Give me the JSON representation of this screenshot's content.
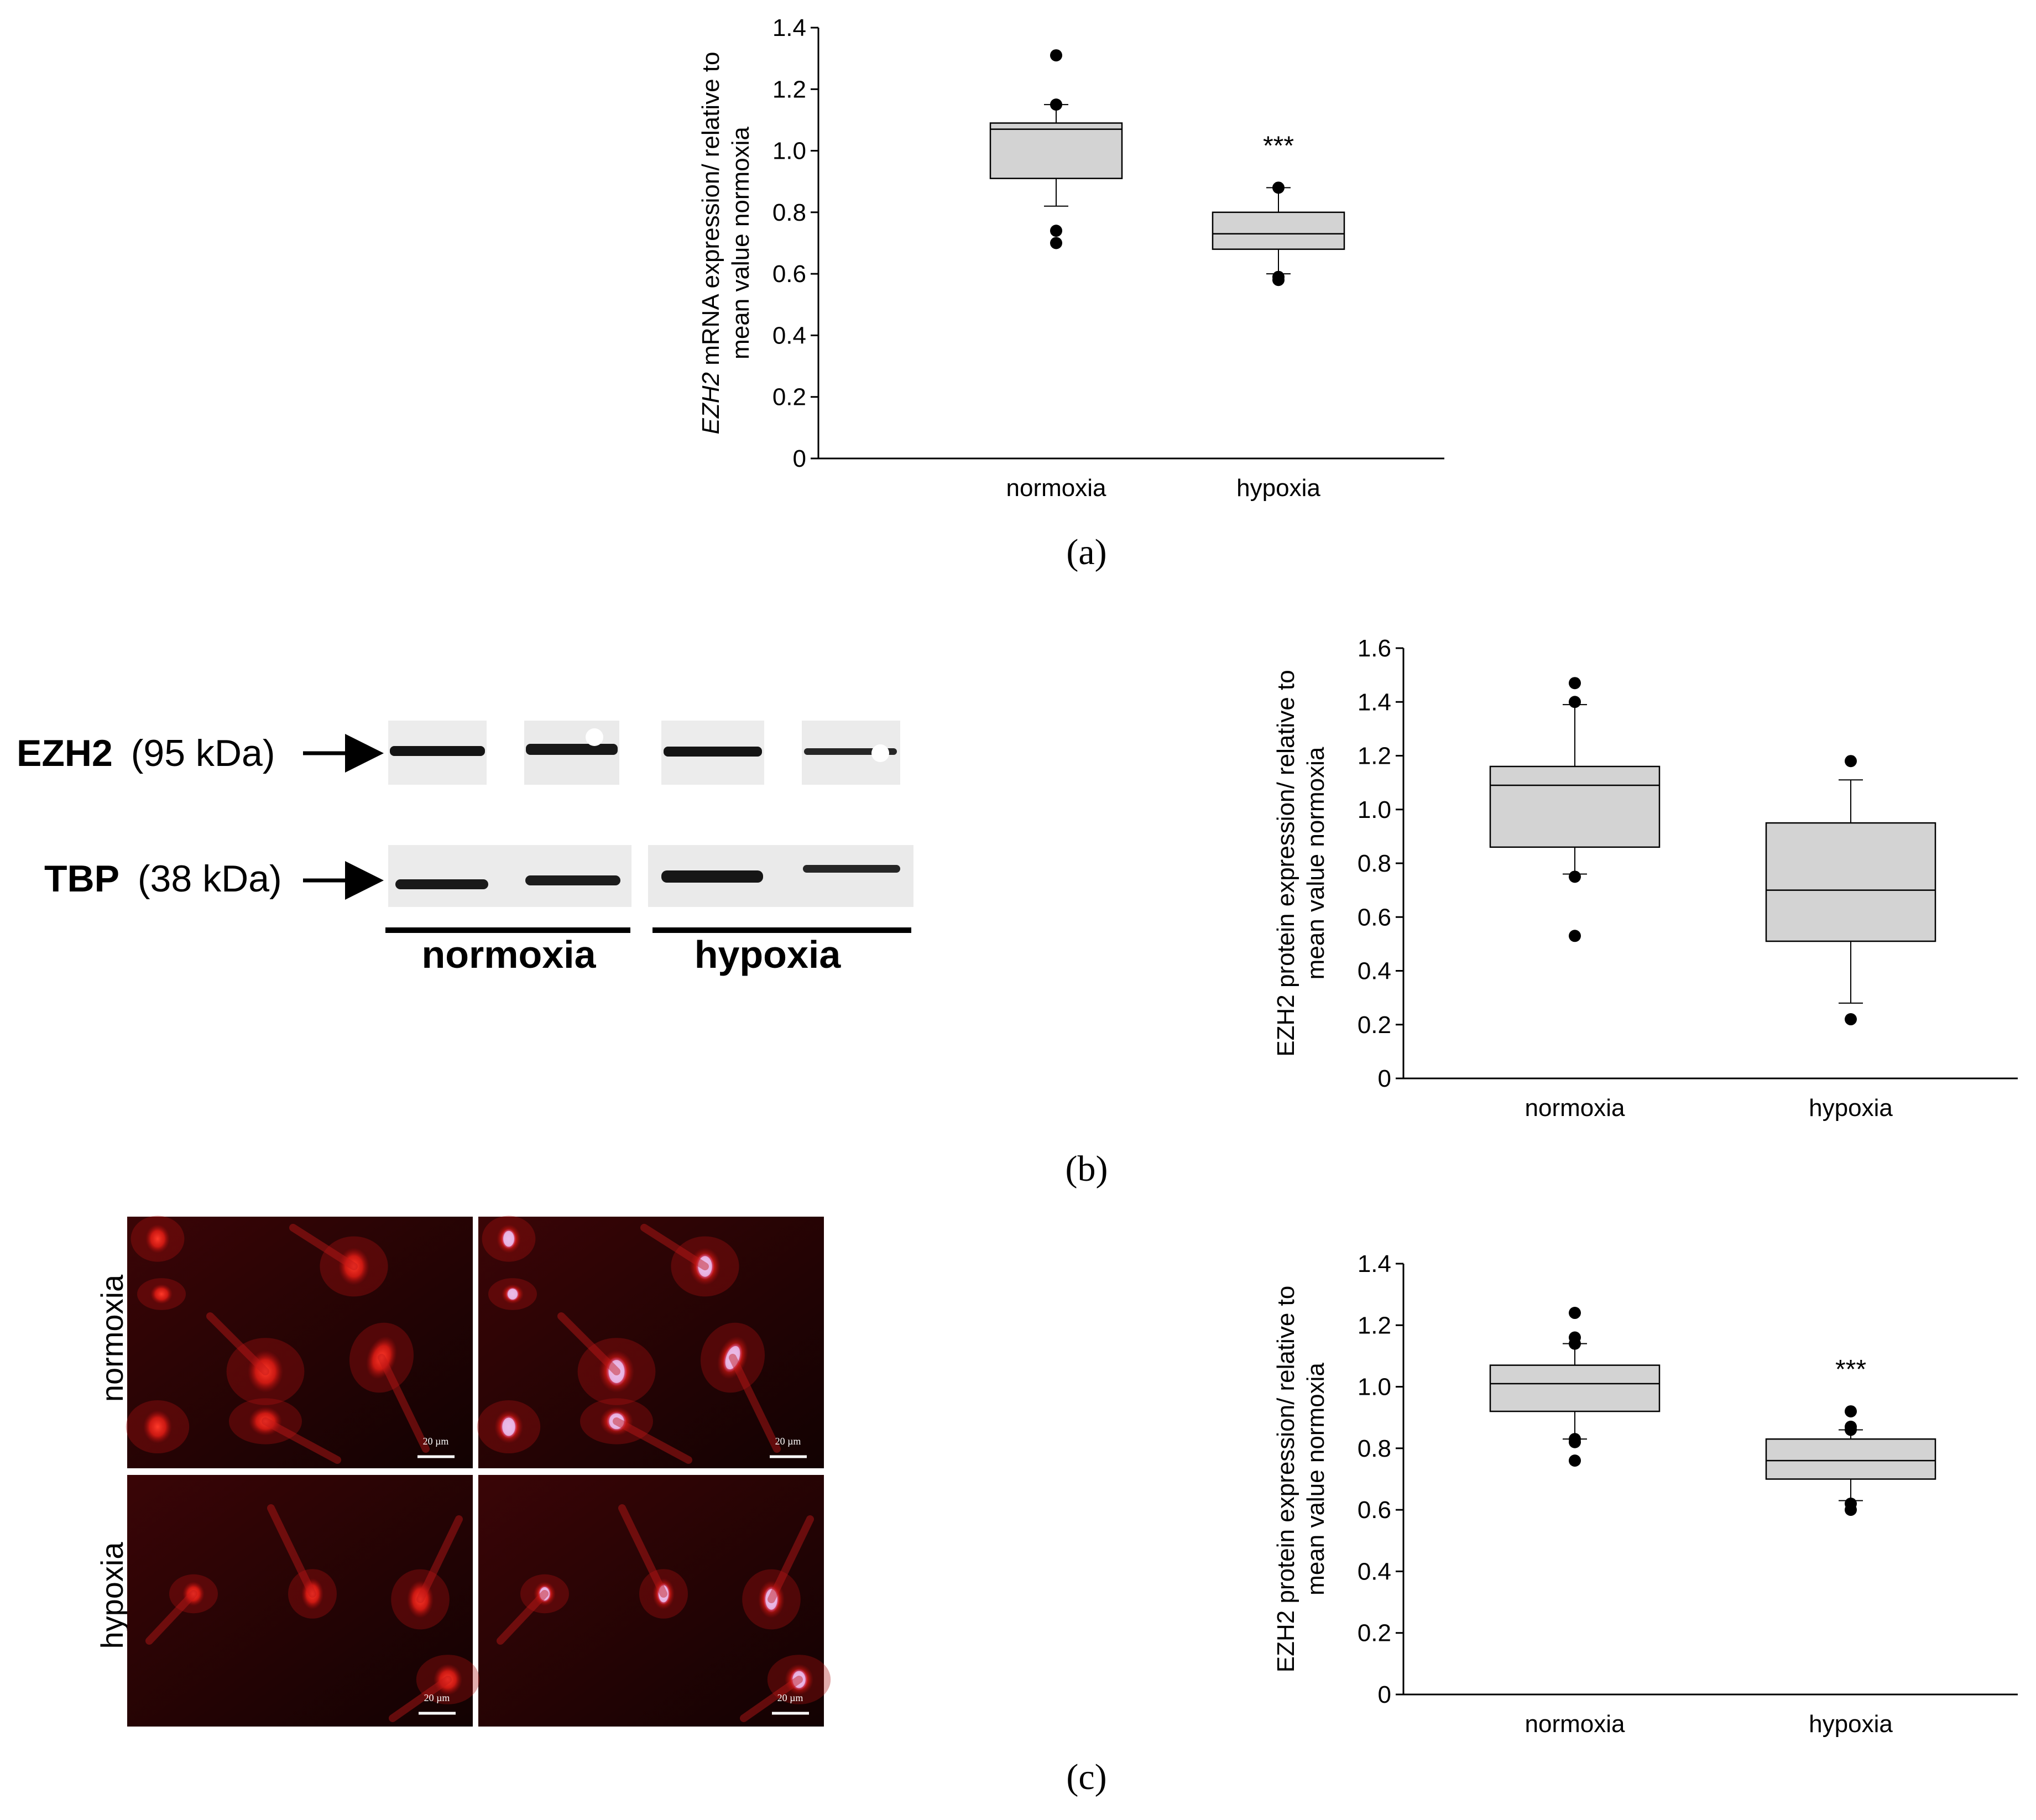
{
  "panel_labels": [
    "(a)",
    "(b)",
    "(c)"
  ],
  "western_blot": {
    "bands": [
      {
        "name": "EZH2",
        "size": "(95 kDa)"
      },
      {
        "name": "TBP",
        "size": "(38 kDa)"
      }
    ],
    "groups": [
      "normoxia",
      "hypoxia"
    ]
  },
  "micrographs": {
    "row_labels": [
      "normoxia",
      "hypoxia"
    ],
    "scale_bar_label": "20 µm",
    "stain_color": "#d81818",
    "nucleus_color": "#e9b8e6"
  },
  "chart_data": [
    {
      "type": "box",
      "panel": "(a)",
      "ylabel_italic": "EZH2",
      "ylabel_rest": " mRNA expression/ relative to",
      "ylabel_line2": "mean value normoxia",
      "ylim": [
        0,
        1.4
      ],
      "yticks": [
        "0",
        "0.2",
        "0.4",
        "0.6",
        "0.8",
        "1.0",
        "1.2",
        "1.4"
      ],
      "categories": [
        "normoxia",
        "hypoxia"
      ],
      "boxes": [
        {
          "q1": 0.91,
          "median": 1.07,
          "q3": 1.09,
          "whisker_low": 0.82,
          "whisker_high": 1.15,
          "outliers": [
            1.31,
            1.15,
            0.74,
            0.7
          ],
          "annotation": ""
        },
        {
          "q1": 0.68,
          "median": 0.73,
          "q3": 0.8,
          "whisker_low": 0.6,
          "whisker_high": 0.88,
          "outliers": [
            0.88,
            0.58,
            0.59
          ],
          "annotation": "***"
        }
      ],
      "box_fill": "#d3d3d3"
    },
    {
      "type": "box",
      "panel": "(b)",
      "ylabel_italic": "",
      "ylabel_rest": "EZH2 protein expression/ relative to",
      "ylabel_line2": "mean value normoxia",
      "ylim": [
        0,
        1.6
      ],
      "yticks": [
        "0",
        "0.2",
        "0.4",
        "0.6",
        "0.8",
        "1.0",
        "1.2",
        "1.4",
        "1.6"
      ],
      "categories": [
        "normoxia",
        "hypoxia"
      ],
      "boxes": [
        {
          "q1": 0.86,
          "median": 1.09,
          "q3": 1.16,
          "whisker_low": 0.76,
          "whisker_high": 1.39,
          "outliers": [
            1.47,
            1.4,
            0.75,
            0.53
          ],
          "annotation": ""
        },
        {
          "q1": 0.51,
          "median": 0.7,
          "q3": 0.95,
          "whisker_low": 0.28,
          "whisker_high": 1.11,
          "outliers": [
            1.18,
            0.22
          ],
          "annotation": ""
        }
      ],
      "box_fill": "#d3d3d3"
    },
    {
      "type": "box",
      "panel": "(c)",
      "ylabel_italic": "",
      "ylabel_rest": "EZH2 protein expression/ relative to",
      "ylabel_line2": "mean value normoxia",
      "ylim": [
        0,
        1.4
      ],
      "yticks": [
        "0",
        "0.2",
        "0.4",
        "0.6",
        "0.8",
        "1.0",
        "1.2",
        "1.4"
      ],
      "categories": [
        "normoxia",
        "hypoxia"
      ],
      "boxes": [
        {
          "q1": 0.92,
          "median": 1.01,
          "q3": 1.07,
          "whisker_low": 0.83,
          "whisker_high": 1.14,
          "outliers": [
            1.24,
            1.16,
            1.14,
            0.83,
            0.82,
            0.76
          ],
          "annotation": ""
        },
        {
          "q1": 0.7,
          "median": 0.76,
          "q3": 0.83,
          "whisker_low": 0.63,
          "whisker_high": 0.86,
          "outliers": [
            0.92,
            0.87,
            0.86,
            0.62,
            0.6
          ],
          "annotation": "***"
        }
      ],
      "box_fill": "#d3d3d3"
    }
  ]
}
